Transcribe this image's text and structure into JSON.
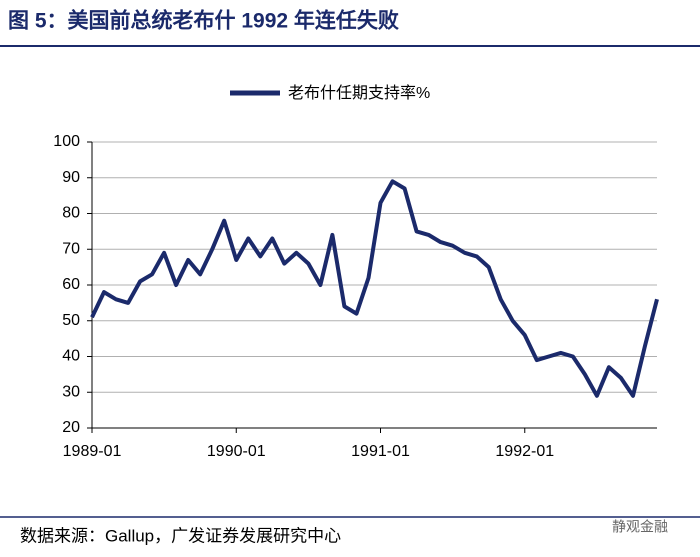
{
  "chart_data": {
    "type": "line",
    "title": "图 5：美国前总统老布什 1992 年连任失败",
    "source": "数据来源：Gallup，广发证券发展研究中心",
    "watermark": "静观金融",
    "x": [
      "1989-01",
      "1989-02",
      "1989-03",
      "1989-04",
      "1989-05",
      "1989-06",
      "1989-07",
      "1989-08",
      "1989-09",
      "1989-10",
      "1989-11",
      "1989-12",
      "1990-01",
      "1990-02",
      "1990-03",
      "1990-04",
      "1990-05",
      "1990-06",
      "1990-07",
      "1990-08",
      "1990-09",
      "1990-10",
      "1990-11",
      "1990-12",
      "1991-01",
      "1991-02",
      "1991-03",
      "1991-04",
      "1991-05",
      "1991-06",
      "1991-07",
      "1991-08",
      "1991-09",
      "1991-10",
      "1991-11",
      "1991-12",
      "1992-01",
      "1992-02",
      "1992-03",
      "1992-04",
      "1992-05",
      "1992-06",
      "1992-07",
      "1992-08",
      "1992-09",
      "1992-10",
      "1992-11",
      "1992-12"
    ],
    "series": [
      {
        "name": "老布什任期支持率%",
        "color": "#1b2a6b",
        "values": [
          51,
          58,
          56,
          55,
          61,
          63,
          69,
          60,
          67,
          63,
          70,
          78,
          67,
          73,
          68,
          73,
          66,
          69,
          66,
          60,
          74,
          54,
          52,
          62,
          83,
          89,
          87,
          75,
          74,
          72,
          71,
          69,
          68,
          65,
          56,
          50,
          46,
          39,
          40,
          41,
          40,
          35,
          29,
          37,
          34,
          29,
          43,
          56
        ]
      }
    ],
    "ylim": [
      20,
      100
    ],
    "yticks": [
      20,
      30,
      40,
      50,
      60,
      70,
      80,
      90,
      100
    ],
    "xticks": [
      "1989-01",
      "1990-01",
      "1991-01",
      "1992-01"
    ],
    "grid": true,
    "legend": "top"
  }
}
